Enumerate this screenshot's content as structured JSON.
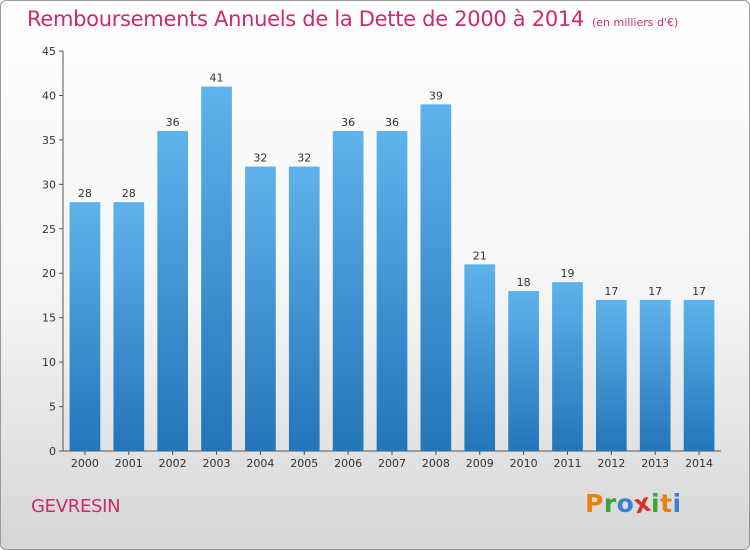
{
  "chart_data": {
    "type": "bar",
    "title": "Remboursements Annuels de la Dette de 2000 à 2014",
    "subtitle": "(en milliers d'€)",
    "categories": [
      "2000",
      "2001",
      "2002",
      "2003",
      "2004",
      "2005",
      "2006",
      "2007",
      "2008",
      "2009",
      "2010",
      "2011",
      "2012",
      "2013",
      "2014"
    ],
    "values": [
      28,
      28,
      36,
      41,
      32,
      32,
      36,
      36,
      39,
      21,
      18,
      19,
      17,
      17,
      17
    ],
    "yticks": [
      0,
      5,
      10,
      15,
      20,
      25,
      30,
      35,
      40,
      45
    ],
    "ylim": [
      0,
      45
    ],
    "xlabel": "",
    "ylabel": "",
    "grid": false,
    "colors": {
      "bar_top": "#5fb3ec",
      "bar_bottom": "#2275b9",
      "title": "#cc2a6e"
    }
  },
  "footer": {
    "commune": "GEVRESIN",
    "brand_letters": [
      "P",
      "r",
      "o",
      "x",
      "i",
      "t",
      "i"
    ],
    "brand_colors": [
      "#e8820f",
      "#3aa33a",
      "#3c7fd4",
      "#d8302a",
      "#3aa33a",
      "#e8820f",
      "#3c7fd4"
    ]
  }
}
